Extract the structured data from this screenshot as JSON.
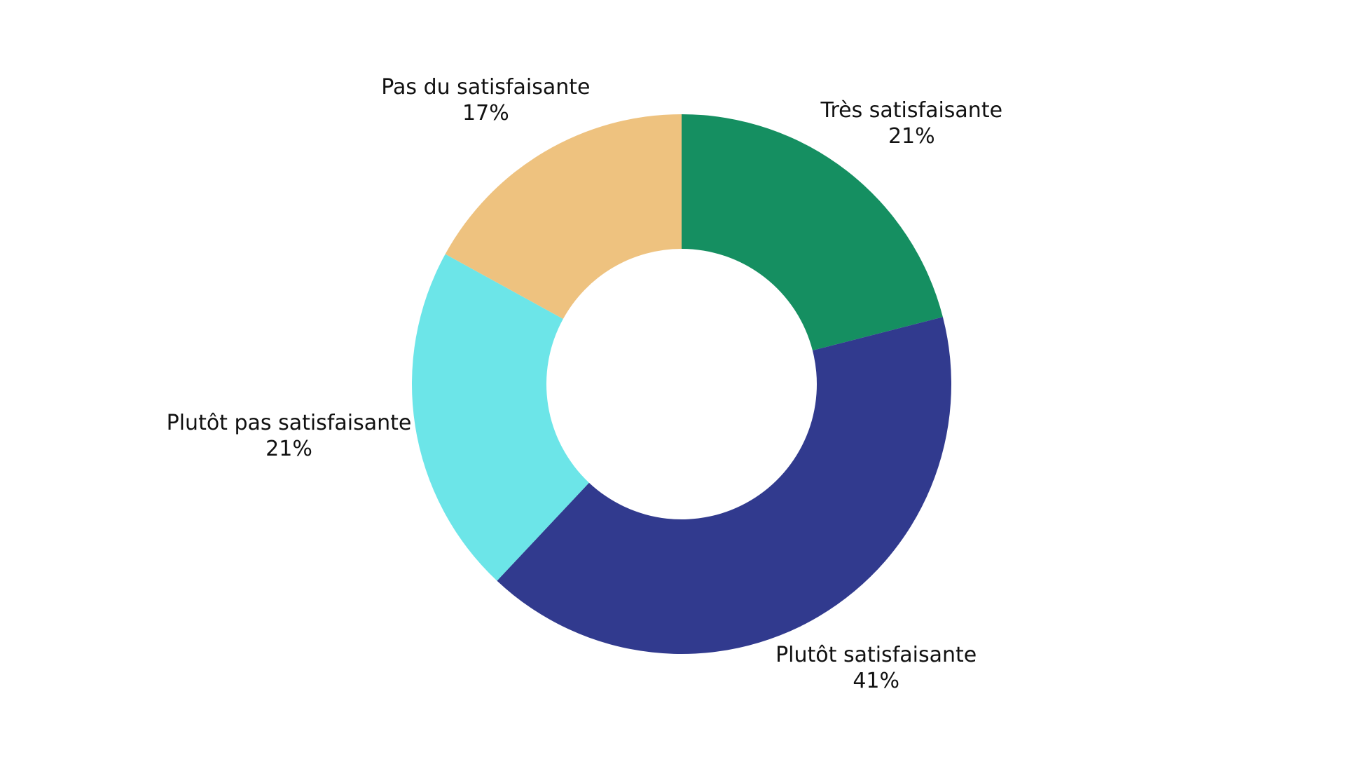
{
  "chart_data": {
    "type": "pie",
    "style": "donut",
    "title": "",
    "start_angle_deg": 0,
    "direction": "clockwise",
    "slices": [
      {
        "label": "Très satisfaisante",
        "value": 21,
        "value_label": "21%",
        "color": "#158F61"
      },
      {
        "label": "Plutôt satisfaisante",
        "value": 41,
        "value_label": "41%",
        "color": "#313A8E"
      },
      {
        "label": "Plutôt pas satisfaisante",
        "value": 21,
        "value_label": "21%",
        "color": "#6CE5E8"
      },
      {
        "label": "Pas du satisfaisante",
        "value": 17,
        "value_label": "17%",
        "color": "#EEC27F"
      }
    ],
    "legend": "none",
    "background": "#FFFFFF"
  }
}
